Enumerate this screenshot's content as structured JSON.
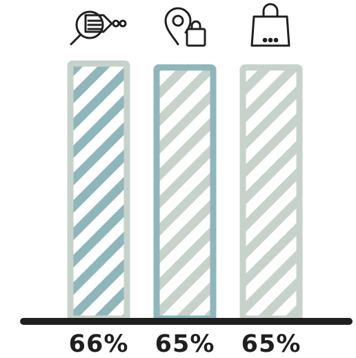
{
  "chart_data": {
    "type": "bar",
    "categories": [
      "",
      "",
      ""
    ],
    "values": [
      66,
      65,
      65
    ],
    "value_labels": [
      "66%",
      "65%",
      "65%"
    ],
    "icons": [
      "price-tag-search-icon",
      "location-pin-shopping-bag-icon",
      "shopping-bag-icon"
    ],
    "ylim": [
      0,
      100
    ],
    "grid": false,
    "legend": "none"
  },
  "colors": {
    "teal": "#8fb6ba",
    "sage": "#c7d2cb",
    "axis": "#1f1f1f",
    "icon": "#1f1f1f"
  }
}
